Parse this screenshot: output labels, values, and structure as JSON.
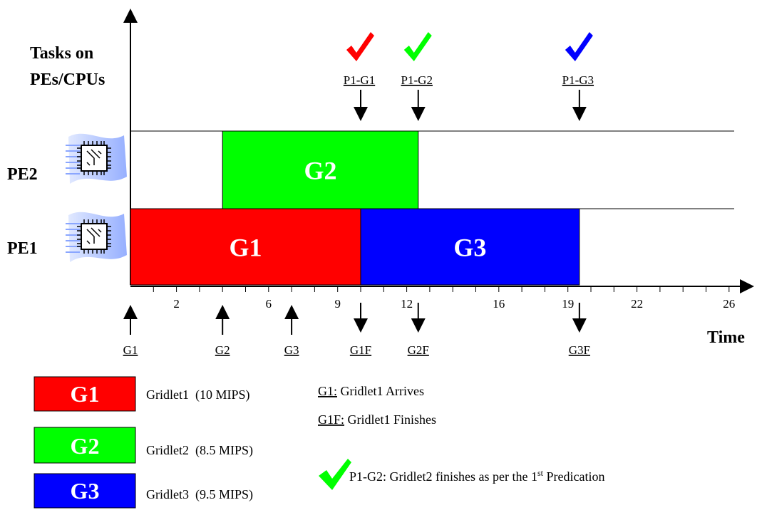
{
  "y_axis_label_line1": "Tasks on",
  "y_axis_label_line2": "PEs/CPUs",
  "x_axis_label": "Time",
  "pe_rows": [
    {
      "label": "PE2",
      "icon": "cpu-chip-icon"
    },
    {
      "label": "PE1",
      "icon": "cpu-chip-icon"
    }
  ],
  "time_range": [
    0,
    26
  ],
  "tick_labels": [
    {
      "value": 2,
      "text": "2"
    },
    {
      "value": 6,
      "text": "6"
    },
    {
      "value": 9,
      "text": "9"
    },
    {
      "value": 12,
      "text": "12"
    },
    {
      "value": 16,
      "text": "16"
    },
    {
      "value": 19,
      "text": "19"
    },
    {
      "value": 22,
      "text": "22"
    },
    {
      "value": 26,
      "text": "26"
    }
  ],
  "gridlets": [
    {
      "label": "G1",
      "pe": "PE1",
      "start": 0,
      "end": 10,
      "color": "#ff0000"
    },
    {
      "label": "G2",
      "pe": "PE2",
      "start": 4,
      "end": 12.5,
      "color": "#00ff00"
    },
    {
      "label": "G3",
      "pe": "PE1",
      "start": 10,
      "end": 19.5,
      "color": "#0000ff"
    }
  ],
  "arrivals": [
    {
      "label": "G1",
      "time": 0
    },
    {
      "label": "G2",
      "time": 4
    },
    {
      "label": "G3",
      "time": 7
    }
  ],
  "finishes": [
    {
      "label": "G1F",
      "time": 10
    },
    {
      "label": "G2F",
      "time": 12.5
    },
    {
      "label": "G3F",
      "time": 19.5
    }
  ],
  "predictions": [
    {
      "label": "P1-G1",
      "time": 10,
      "color": "#ff0000"
    },
    {
      "label": "P1-G2",
      "time": 12.5,
      "color": "#00ff00"
    },
    {
      "label": "P1-G3",
      "time": 19.5,
      "color": "#0000ff"
    }
  ],
  "legend": {
    "items": [
      {
        "box": "G1",
        "text": "Gridlet1  (10 MIPS)",
        "color": "#ff0000"
      },
      {
        "box": "G2",
        "text": "Gridlet2  (8.5 MIPS)",
        "color": "#00ff00"
      },
      {
        "box": "G3",
        "text": "Gridlet3  (9.5 MIPS)",
        "color": "#0000ff"
      }
    ],
    "notes": [
      {
        "key": "G1:",
        "text": " Gridlet1 Arrives"
      },
      {
        "key": "G1F:",
        "text": " Gridlet1 Finishes"
      }
    ],
    "check_note": {
      "prefix": "P1-G2: Gridlet2 finishes as per the 1",
      "sup": "st",
      "suffix": " Predication",
      "color": "#00ff00"
    }
  }
}
